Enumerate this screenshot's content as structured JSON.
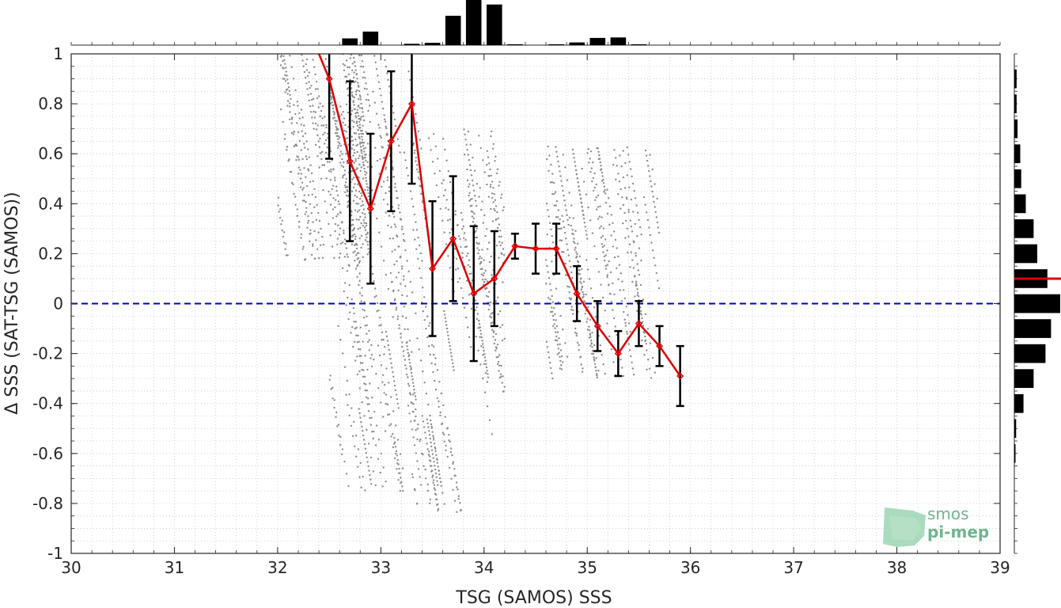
{
  "chart_data": {
    "type": "scatter",
    "title": "",
    "xlabel": "TSG (SAMOS) SSS",
    "ylabel": "Δ SSS (SAT-TSG (SAMOS))",
    "xlim": [
      30,
      39
    ],
    "ylim": [
      -1,
      1
    ],
    "x_ticks": [
      "30",
      "31",
      "32",
      "33",
      "34",
      "35",
      "36",
      "37",
      "38",
      "39"
    ],
    "y_ticks": [
      "1",
      "0.8",
      "0.6",
      "0.4",
      "0.2",
      "0",
      "-0.2",
      "-0.4",
      "-0.6",
      "-0.8",
      "-1"
    ],
    "grid": true,
    "reference_line": {
      "y": 0,
      "style": "dashed",
      "color": "#0000cc"
    },
    "binned_mean": {
      "color": "#dd0000",
      "x": [
        32.4,
        32.5,
        32.7,
        32.9,
        33.1,
        33.3,
        33.5,
        33.7,
        33.9,
        34.1,
        34.3,
        34.5,
        34.7,
        34.9,
        35.1,
        35.3,
        35.5,
        35.7,
        35.9
      ],
      "mean": [
        1.0,
        0.9,
        0.57,
        0.38,
        0.65,
        0.8,
        0.14,
        0.26,
        0.04,
        0.1,
        0.23,
        0.22,
        0.22,
        0.04,
        -0.09,
        -0.2,
        -0.08,
        -0.17,
        -0.29
      ],
      "std": [
        null,
        0.32,
        0.32,
        0.3,
        0.28,
        0.32,
        0.27,
        0.25,
        0.27,
        0.19,
        0.05,
        0.1,
        0.1,
        0.11,
        0.1,
        0.09,
        0.09,
        0.08,
        0.12
      ]
    },
    "scatter_clusters": [
      {
        "x_range": [
          32.0,
          32.9
        ],
        "y_range": [
          0.15,
          1.0
        ]
      },
      {
        "x_range": [
          32.5,
          33.4
        ],
        "y_range": [
          -0.75,
          1.0
        ]
      },
      {
        "x_range": [
          33.3,
          34.2
        ],
        "y_range": [
          -0.84,
          0.7
        ]
      },
      {
        "x_range": [
          34.6,
          35.7
        ],
        "y_range": [
          -0.3,
          0.63
        ]
      }
    ],
    "top_histogram": {
      "bin_centers": [
        32.5,
        32.7,
        32.9,
        33.1,
        33.3,
        33.5,
        33.7,
        33.9,
        34.1,
        34.3,
        34.5,
        34.7,
        34.9,
        35.1,
        35.3,
        35.5,
        35.7
      ],
      "relative_counts": [
        0.0,
        0.15,
        0.3,
        0.0,
        0.03,
        0.05,
        0.65,
        1.0,
        0.9,
        0.02,
        0.0,
        0.02,
        0.06,
        0.16,
        0.17,
        0.02,
        0.0
      ]
    },
    "right_histogram": {
      "bin_centers": [
        0.9,
        0.8,
        0.7,
        0.6,
        0.5,
        0.4,
        0.3,
        0.2,
        0.1,
        0.0,
        -0.1,
        -0.2,
        -0.3,
        -0.4,
        -0.5,
        -0.6
      ],
      "relative_counts": [
        0.05,
        0.05,
        0.07,
        0.13,
        0.15,
        0.25,
        0.42,
        0.5,
        0.72,
        1.0,
        0.8,
        0.68,
        0.42,
        0.2,
        0.04,
        0.02
      ],
      "mean_marker": 0.1,
      "mean_marker_color": "#dd0000"
    }
  },
  "logo": {
    "line1": "smos",
    "line2": "pi-mep",
    "color": "#6fb58e"
  }
}
